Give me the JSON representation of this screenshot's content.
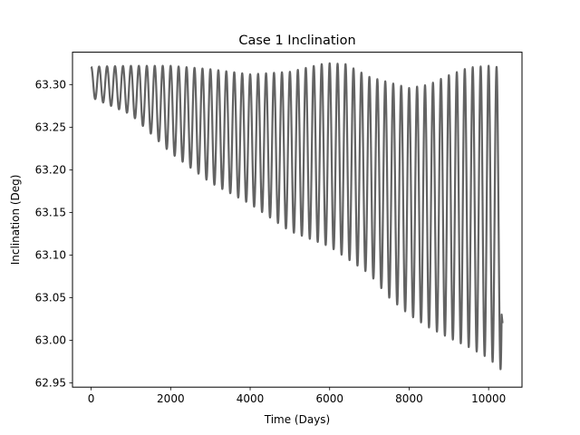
{
  "chart_data": {
    "type": "line",
    "title": "Case 1 Inclination",
    "xlabel": "Time (Days)",
    "ylabel": "Inclination (Deg)",
    "xlim": [
      -470,
      10840
    ],
    "ylim": [
      62.945,
      63.338
    ],
    "xticks": [
      0,
      2000,
      4000,
      6000,
      8000,
      10000
    ],
    "yticks": [
      62.95,
      63.0,
      63.05,
      63.1,
      63.15,
      63.2,
      63.25,
      63.3
    ],
    "xtick_labels": [
      "0",
      "2000",
      "4000",
      "6000",
      "8000",
      "10000"
    ],
    "ytick_labels": [
      "62.95",
      "63.00",
      "63.05",
      "63.10",
      "63.15",
      "63.20",
      "63.25",
      "63.30"
    ],
    "grid": false,
    "line_color": "#636363",
    "series": [
      {
        "x_start": 0,
        "x_end": 10330,
        "oscillation_period_days": 200,
        "upper_envelope": {
          "x": [
            0,
            1000,
            2000,
            3000,
            4000,
            5000,
            5800,
            6000,
            6400,
            7000,
            8000,
            8500,
            9000,
            9500,
            10000,
            10300
          ],
          "y": [
            63.321,
            63.322,
            63.322,
            63.318,
            63.312,
            63.315,
            63.324,
            63.325,
            63.324,
            63.309,
            63.296,
            63.3,
            63.311,
            63.32,
            63.322,
            63.32
          ]
        },
        "lower_envelope": {
          "x": [
            0,
            1000,
            2000,
            3000,
            4000,
            5000,
            6000,
            7000,
            7500,
            8000,
            8500,
            9000,
            9500,
            10000,
            10300
          ],
          "y": [
            63.285,
            63.265,
            63.22,
            63.185,
            63.16,
            63.128,
            63.11,
            63.078,
            63.05,
            63.03,
            63.015,
            63.003,
            62.992,
            62.979,
            62.966
          ]
        },
        "final_spike": {
          "x": 10350,
          "y": 63.02
        }
      }
    ]
  }
}
